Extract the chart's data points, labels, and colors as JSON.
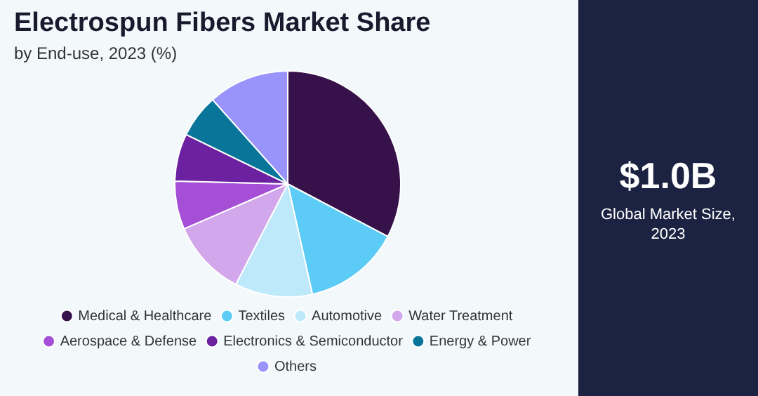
{
  "chart_data": {
    "type": "pie",
    "title": "Electrospun Fibers Market Share",
    "subtitle": "by End-use, 2023 (%)",
    "categories": [
      "Medical & Healthcare",
      "Textiles",
      "Automotive",
      "Water Treatment",
      "Aerospace & Defense",
      "Electronics & Semiconductor",
      "Energy & Power",
      "Others"
    ],
    "values": [
      32.7,
      13.8,
      11.1,
      10.9,
      6.9,
      6.8,
      6.2,
      11.6
    ],
    "colors": [
      "#371149",
      "#5ccbf5",
      "#bde9fa",
      "#d3a7eb",
      "#a54fd6",
      "#6c21a0",
      "#087599",
      "#9894fb"
    ],
    "legend": "bottom",
    "annotations": [
      "$1.0B",
      "Global Market Size, 2023"
    ]
  }
}
